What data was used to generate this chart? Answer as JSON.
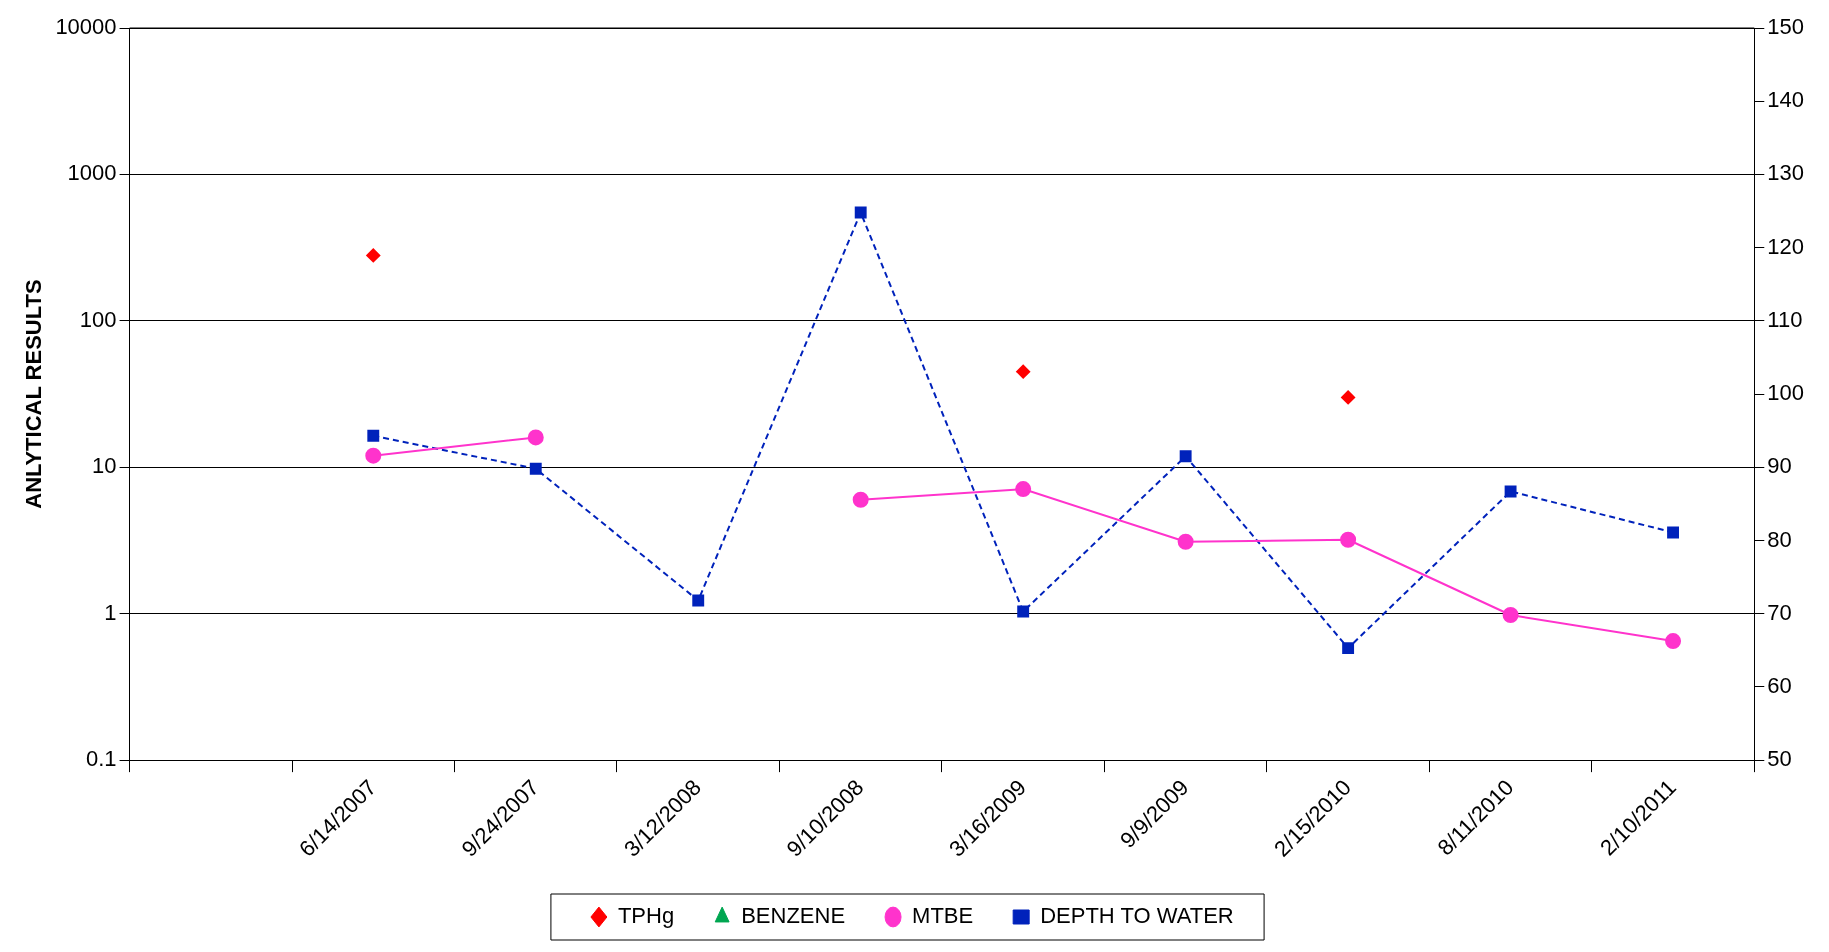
{
  "chart_data": {
    "type": "line",
    "ylabel": "ANLYTICAL RESULTS",
    "categories": [
      null,
      "6/14/2007",
      "9/24/2007",
      "3/12/2008",
      "9/10/2008",
      "3/16/2009",
      "9/9/2009",
      "2/15/2010",
      "8/11/2010",
      "2/10/2011"
    ],
    "series": [
      {
        "name": "TPHg",
        "type": "scatter",
        "color": "#ff0000",
        "marker": "diamond",
        "values": [
          null,
          280,
          null,
          null,
          null,
          45,
          null,
          30,
          null,
          null
        ]
      },
      {
        "name": "BENZENE",
        "color": "#00a651",
        "marker": "triangle",
        "line_style": "solid",
        "values": [
          null,
          null,
          null,
          null,
          null,
          null,
          null,
          null,
          null,
          null
        ]
      },
      {
        "name": "MTBE",
        "color": "#ff33cc",
        "marker": "circle",
        "line_style": "solid",
        "values": [
          null,
          12,
          16,
          null,
          6,
          7.1,
          3.1,
          3.2,
          0.98,
          0.65
        ]
      },
      {
        "name": "DEPTH TO WATER",
        "color": "#0022bb",
        "marker": "square",
        "line_style": "dashed",
        "axis": "y2",
        "values": [
          null,
          94.3,
          89.8,
          71.8,
          124.8,
          70.3,
          91.5,
          65.3,
          86.7,
          81.1
        ]
      }
    ],
    "log": "y",
    "ylim": [
      0.1,
      10000
    ],
    "yticks": [
      0.1,
      1,
      10,
      100,
      1000,
      10000
    ],
    "y2lim": [
      50,
      150
    ],
    "y2ticks": [
      50,
      60,
      70,
      80,
      90,
      100,
      110,
      120,
      130,
      140,
      150
    ],
    "grid": "y",
    "legend": "bottom"
  }
}
